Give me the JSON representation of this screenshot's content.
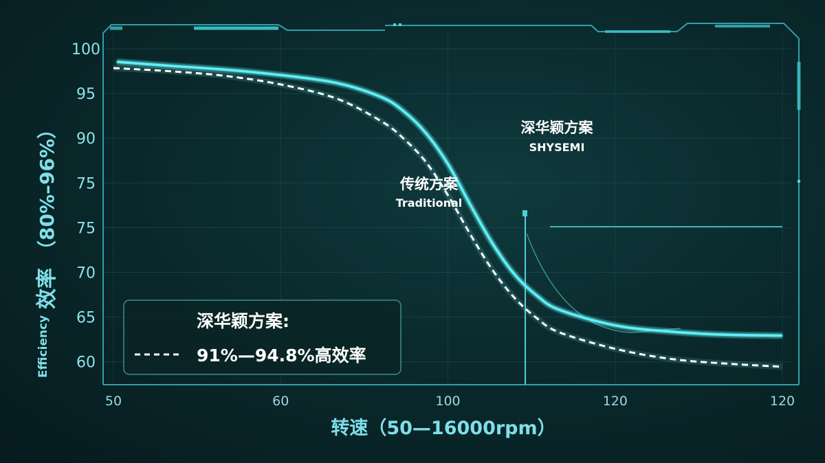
{
  "chart_data": {
    "type": "line",
    "ylabel_cn": "效率",
    "ylabel_range": "（80%–96%）",
    "ylabel_en": "Efficiency",
    "xlabel": "转速（50—16000rpm）",
    "y_ticks": [
      "100",
      "95",
      "90",
      "75",
      "75",
      "70",
      "65",
      "60"
    ],
    "x_ticks": [
      "50",
      "60",
      "100",
      "120",
      "120"
    ],
    "annotations": [
      {
        "cn": "深华颖方案",
        "en": "SHYSEMI"
      },
      {
        "cn": "传统方案",
        "en": "Traditional"
      }
    ],
    "legend": {
      "solid_label": "深华颖方案:",
      "dashed_label": "91%—94.8%高效率",
      "position": "bottom-left"
    },
    "series": [
      {
        "name": "深华颖方案",
        "style": "solid",
        "color": "#5ff0f5",
        "points": [
          [
            0.03,
            99.3
          ],
          [
            0.5,
            98.8
          ],
          [
            1.0,
            98.3
          ],
          [
            1.5,
            97.6
          ],
          [
            2.0,
            96.6
          ],
          [
            2.4,
            94.8
          ],
          [
            2.6,
            93.0
          ],
          [
            2.8,
            90.2
          ],
          [
            3.0,
            86.2
          ],
          [
            3.2,
            81.0
          ],
          [
            3.4,
            76.0
          ],
          [
            3.6,
            72.0
          ],
          [
            3.8,
            69.3
          ],
          [
            4.0,
            67.5
          ],
          [
            4.5,
            65.5
          ],
          [
            5.0,
            64.7
          ],
          [
            5.5,
            64.3
          ],
          [
            6.0,
            64.2
          ]
        ]
      },
      {
        "name": "传统方案",
        "style": "dashed",
        "color": "#ffffff",
        "points": [
          [
            0.0,
            98.5
          ],
          [
            0.5,
            98.1
          ],
          [
            1.0,
            97.5
          ],
          [
            1.5,
            96.4
          ],
          [
            2.0,
            94.6
          ],
          [
            2.4,
            91.7
          ],
          [
            2.6,
            89.5
          ],
          [
            2.8,
            86.5
          ],
          [
            3.0,
            82.2
          ],
          [
            3.2,
            77.2
          ],
          [
            3.4,
            72.6
          ],
          [
            3.6,
            69.0
          ],
          [
            3.8,
            66.4
          ],
          [
            4.0,
            64.6
          ],
          [
            4.5,
            62.5
          ],
          [
            5.0,
            61.2
          ],
          [
            5.5,
            60.6
          ],
          [
            6.0,
            60.2
          ]
        ]
      }
    ],
    "xlim": [
      0,
      6
    ],
    "ylim": [
      57.9,
      103.0
    ],
    "grid": true
  }
}
